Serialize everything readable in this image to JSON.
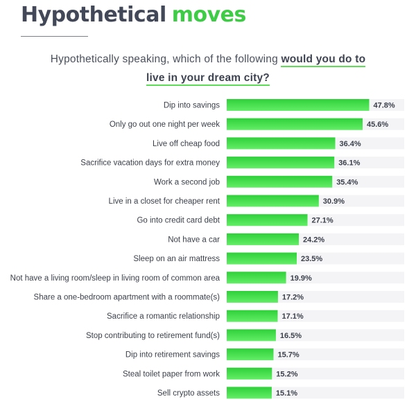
{
  "header": {
    "title_part1": "Hypothetical",
    "title_part2": "moves",
    "subtitle_plain": "Hypothetically speaking, which of the following",
    "subtitle_emph_1": "would you do to",
    "subtitle_emph_2": "live in your dream city?"
  },
  "colors": {
    "title_dark": "#424857",
    "accent_green": "#3ecb46",
    "bar_top": "#2fd03a",
    "bar_bottom": "#63ee67",
    "track": "#f4f4f6"
  },
  "chart_data": {
    "type": "bar",
    "orientation": "horizontal",
    "categories": [
      "Dip into savings",
      "Only go out one night per week",
      "Live off cheap food",
      "Sacrifice vacation days for extra money",
      "Work a second job",
      "Live in a closet for cheaper rent",
      "Go into credit card debt",
      "Not have a car",
      "Sleep on an air mattress",
      "Not have a living room/sleep in living room of common area",
      "Share a one-bedroom apartment with a roommate(s)",
      "Sacrifice a romantic relationship",
      "Stop contributing to retirement fund(s)",
      "Dip into retirement savings",
      "Steal toilet paper from work",
      "Sell crypto assets"
    ],
    "values": [
      47.8,
      45.6,
      36.4,
      36.1,
      35.4,
      30.9,
      27.1,
      24.2,
      23.5,
      19.9,
      17.2,
      17.1,
      16.5,
      15.7,
      15.2,
      15.1
    ],
    "value_labels": [
      "47.8%",
      "45.6%",
      "36.4%",
      "36.1%",
      "35.4%",
      "30.9%",
      "27.1%",
      "24.2%",
      "23.5%",
      "19.9%",
      "17.2%",
      "17.1%",
      "16.5%",
      "15.7%",
      "15.2%",
      "15.1%"
    ],
    "xlim": [
      0,
      60
    ],
    "grid": false,
    "legend": "none"
  }
}
